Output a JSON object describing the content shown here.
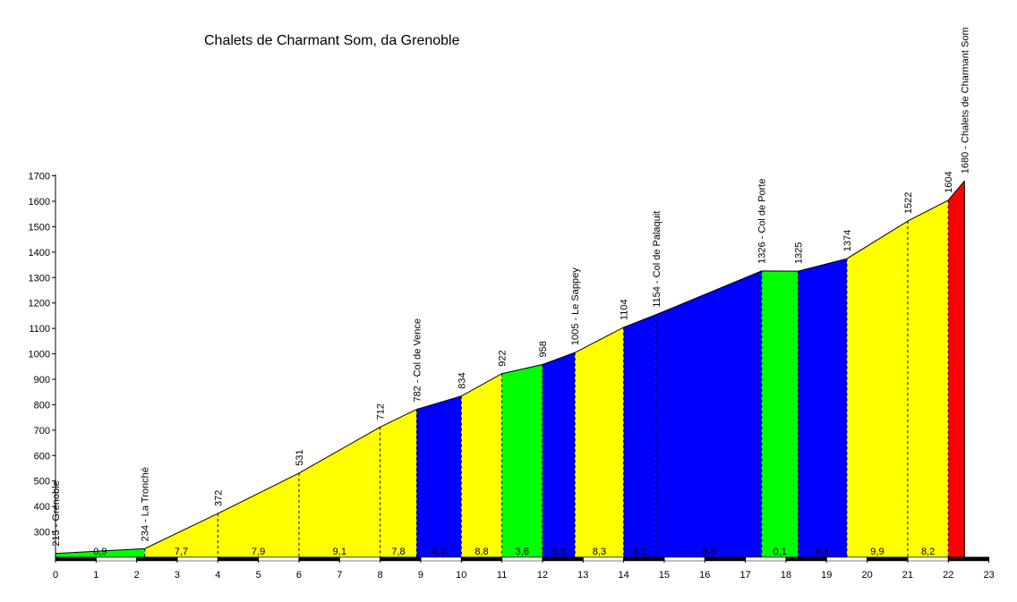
{
  "chart_data": {
    "type": "area",
    "title": "Chalets de Charmant Som, da Grenoble",
    "xlabel": "",
    "ylabel": "",
    "xlim": [
      0,
      23
    ],
    "ylim": [
      200,
      1700
    ],
    "x_ticks": [
      "0",
      "1",
      "2",
      "3",
      "4",
      "5",
      "6",
      "7",
      "8",
      "9",
      "10",
      "11",
      "12",
      "13",
      "14",
      "15",
      "16",
      "17",
      "18",
      "19",
      "20",
      "21",
      "22",
      "23"
    ],
    "y_ticks": [
      "300",
      "400",
      "500",
      "600",
      "700",
      "800",
      "900",
      "1000",
      "1100",
      "1200",
      "1300",
      "1400",
      "1500",
      "1600",
      "1700"
    ],
    "grid": false,
    "legend": "none",
    "points": [
      {
        "x": 0.0,
        "elev": 215,
        "label": "215 - Grenoble"
      },
      {
        "x": 2.2,
        "elev": 234,
        "label": "234 - La Tronché"
      },
      {
        "x": 4.0,
        "elev": 372,
        "label": "372"
      },
      {
        "x": 6.0,
        "elev": 531,
        "label": "531"
      },
      {
        "x": 8.0,
        "elev": 712,
        "label": "712"
      },
      {
        "x": 8.9,
        "elev": 782,
        "label": "782 - Col de Vence"
      },
      {
        "x": 10.0,
        "elev": 834,
        "label": "834"
      },
      {
        "x": 11.0,
        "elev": 922,
        "label": "922"
      },
      {
        "x": 12.0,
        "elev": 958,
        "label": "958"
      },
      {
        "x": 12.8,
        "elev": 1005,
        "label": "1005 - Le Sappey"
      },
      {
        "x": 14.0,
        "elev": 1104,
        "label": "1104"
      },
      {
        "x": 14.8,
        "elev": 1154,
        "label": "1154 - Col de Palaquit"
      },
      {
        "x": 17.4,
        "elev": 1326,
        "label": "1326 - Col de Porte"
      },
      {
        "x": 18.3,
        "elev": 1325,
        "label": "1325"
      },
      {
        "x": 19.5,
        "elev": 1374,
        "label": "1374"
      },
      {
        "x": 21.0,
        "elev": 1522,
        "label": "1522"
      },
      {
        "x": 22.0,
        "elev": 1604,
        "label": "1604"
      },
      {
        "x": 22.4,
        "elev": 1680,
        "label": "1680 - Chalets de Charmant Som"
      }
    ],
    "segments": [
      {
        "x0": 0.0,
        "x1": 2.2,
        "grade": "0,9",
        "color": "#00ff00"
      },
      {
        "x0": 2.2,
        "x1": 4.0,
        "grade": "7,7",
        "color": "#ffff00"
      },
      {
        "x0": 4.0,
        "x1": 6.0,
        "grade": "7,9",
        "color": "#ffff00"
      },
      {
        "x0": 6.0,
        "x1": 8.0,
        "grade": "9,1",
        "color": "#ffff00"
      },
      {
        "x0": 8.0,
        "x1": 8.9,
        "grade": "7,8",
        "color": "#ffff00"
      },
      {
        "x0": 8.9,
        "x1": 10.0,
        "grade": "4,7",
        "color": "#0000ff"
      },
      {
        "x0": 10.0,
        "x1": 11.0,
        "grade": "8,8",
        "color": "#ffff00"
      },
      {
        "x0": 11.0,
        "x1": 12.0,
        "grade": "3,6",
        "color": "#00ff00"
      },
      {
        "x0": 12.0,
        "x1": 12.8,
        "grade": "5,9",
        "color": "#0000ff"
      },
      {
        "x0": 12.8,
        "x1": 14.0,
        "grade": "8,3",
        "color": "#ffff00"
      },
      {
        "x0": 14.0,
        "x1": 14.8,
        "grade": "6,2",
        "color": "#0000ff"
      },
      {
        "x0": 14.8,
        "x1": 17.4,
        "grade": "6,6",
        "color": "#0000ff"
      },
      {
        "x0": 17.4,
        "x1": 18.3,
        "grade": "0,1",
        "color": "#00ff00"
      },
      {
        "x0": 18.3,
        "x1": 19.5,
        "grade": "4,1",
        "color": "#0000ff"
      },
      {
        "x0": 19.5,
        "x1": 21.0,
        "grade": "9,9",
        "color": "#ffff00"
      },
      {
        "x0": 21.0,
        "x1": 22.0,
        "grade": "8,2",
        "color": "#ffff00"
      },
      {
        "x0": 22.0,
        "x1": 22.4,
        "grade": "",
        "color": "#ff0000"
      }
    ]
  }
}
